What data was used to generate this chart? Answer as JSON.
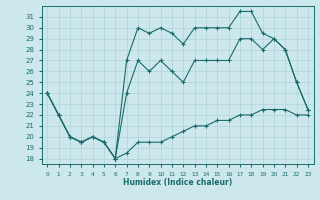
{
  "xlabel": "Humidex (Indice chaleur)",
  "ylabel": "",
  "bg_color": "#cce8ec",
  "line_color": "#1a6b6b",
  "grid_color": "#b0d4d8",
  "xlim": [
    -0.5,
    23.5
  ],
  "ylim": [
    17.5,
    32.0
  ],
  "xticks": [
    0,
    1,
    2,
    3,
    4,
    5,
    6,
    7,
    8,
    9,
    10,
    11,
    12,
    13,
    14,
    15,
    16,
    17,
    18,
    19,
    20,
    21,
    22,
    23
  ],
  "yticks": [
    18,
    19,
    20,
    21,
    22,
    23,
    24,
    25,
    26,
    27,
    28,
    29,
    30,
    31
  ],
  "line_top": {
    "x": [
      0,
      1,
      2,
      3,
      4,
      5,
      6,
      7,
      8,
      9,
      10,
      11,
      12,
      13,
      14,
      15,
      16,
      17,
      18,
      19,
      20,
      21,
      22,
      23
    ],
    "y": [
      24,
      22,
      20,
      19.5,
      20,
      19.5,
      18,
      27,
      30,
      29.5,
      30,
      29.5,
      28.5,
      30,
      30,
      30,
      30,
      31.5,
      31.5,
      29.5,
      29,
      28,
      25,
      22.5
    ]
  },
  "line_mid": {
    "x": [
      0,
      1,
      2,
      3,
      4,
      5,
      6,
      7,
      8,
      9,
      10,
      11,
      12,
      13,
      14,
      15,
      16,
      17,
      18,
      19,
      20,
      21,
      22,
      23
    ],
    "y": [
      24,
      22,
      20,
      19.5,
      20,
      19.5,
      18,
      24,
      27,
      26,
      27,
      26,
      25,
      27,
      27,
      27,
      27,
      29,
      29,
      28,
      29,
      28,
      25,
      22.5
    ]
  },
  "line_bot": {
    "x": [
      0,
      1,
      2,
      3,
      4,
      5,
      6,
      7,
      8,
      9,
      10,
      11,
      12,
      13,
      14,
      15,
      16,
      17,
      18,
      19,
      20,
      21,
      22,
      23
    ],
    "y": [
      24,
      22,
      20,
      19.5,
      20,
      19.5,
      18,
      18.5,
      19.5,
      19.5,
      19.5,
      20,
      20.5,
      21,
      21,
      21.5,
      21.5,
      22,
      22,
      22.5,
      22.5,
      22.5,
      22,
      22
    ]
  }
}
